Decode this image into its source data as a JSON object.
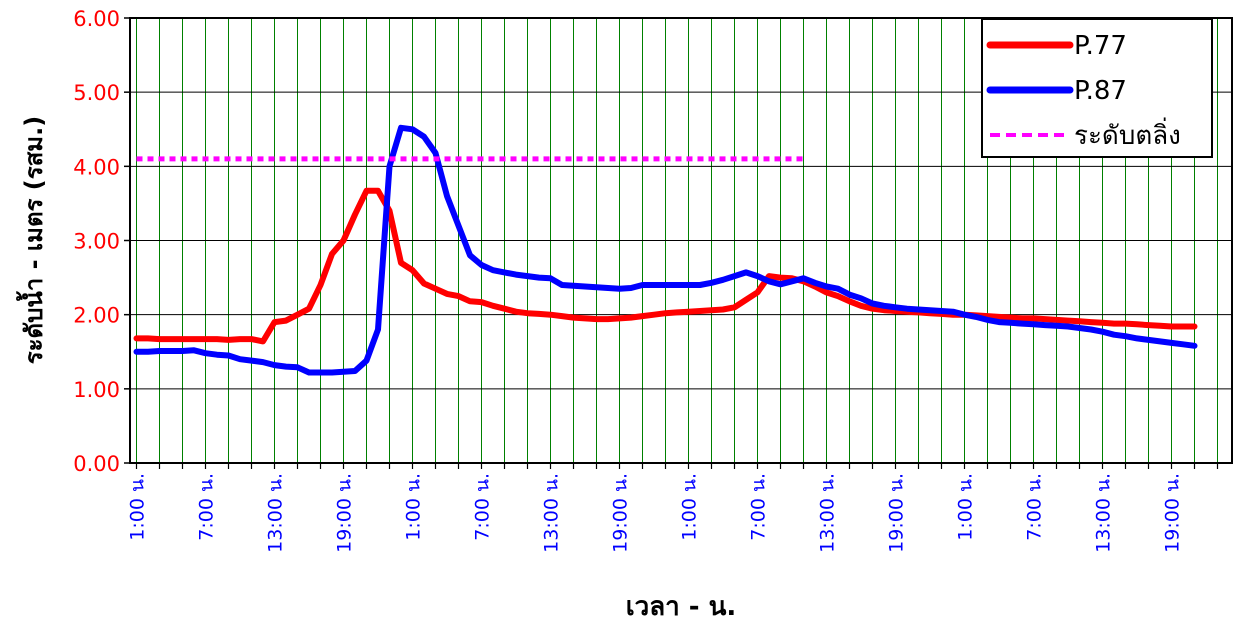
{
  "chart_data": {
    "type": "line",
    "xlabel": "เวลา - น.",
    "ylabel": "ระดับน้ำ - เมตร (รสม.)",
    "ylim": [
      0,
      6
    ],
    "y_ticks": [
      "0.00",
      "1.00",
      "2.00",
      "3.00",
      "4.00",
      "5.00",
      "6.00"
    ],
    "x_range_hours": [
      0,
      94
    ],
    "x_tick_labels": [
      "1:00 น.",
      "7:00 น.",
      "13:00 น.",
      "19:00 น.",
      "1:00 น.",
      "7:00 น.",
      "13:00 น.",
      "19:00 น.",
      "1:00 น.",
      "7:00 น.",
      "13:00 น.",
      "19:00 น.",
      "1:00 น.",
      "7:00 น.",
      "13:00 น.",
      "19:00 น."
    ],
    "grid": true,
    "legend_position": "top-right",
    "series": [
      {
        "name": "P.77",
        "color": "#ff0000",
        "style": "solid",
        "points": [
          [
            0,
            1.68
          ],
          [
            1,
            1.68
          ],
          [
            2,
            1.67
          ],
          [
            3,
            1.67
          ],
          [
            4,
            1.67
          ],
          [
            5,
            1.67
          ],
          [
            6,
            1.67
          ],
          [
            7,
            1.67
          ],
          [
            8,
            1.66
          ],
          [
            9,
            1.67
          ],
          [
            10,
            1.67
          ],
          [
            11,
            1.64
          ],
          [
            12,
            1.9
          ],
          [
            13,
            1.92
          ],
          [
            14,
            2.0
          ],
          [
            15,
            2.08
          ],
          [
            16,
            2.4
          ],
          [
            17,
            2.82
          ],
          [
            18,
            3.0
          ],
          [
            19,
            3.35
          ],
          [
            20,
            3.67
          ],
          [
            21,
            3.67
          ],
          [
            22,
            3.4
          ],
          [
            23,
            2.7
          ],
          [
            24,
            2.6
          ],
          [
            25,
            2.42
          ],
          [
            26,
            2.35
          ],
          [
            27,
            2.28
          ],
          [
            28,
            2.25
          ],
          [
            29,
            2.18
          ],
          [
            30,
            2.17
          ],
          [
            31,
            2.12
          ],
          [
            32,
            2.08
          ],
          [
            33,
            2.04
          ],
          [
            34,
            2.02
          ],
          [
            35,
            2.01
          ],
          [
            36,
            2.0
          ],
          [
            37,
            1.98
          ],
          [
            38,
            1.96
          ],
          [
            39,
            1.95
          ],
          [
            40,
            1.94
          ],
          [
            41,
            1.94
          ],
          [
            42,
            1.95
          ],
          [
            43,
            1.96
          ],
          [
            44,
            1.98
          ],
          [
            45,
            2.0
          ],
          [
            46,
            2.02
          ],
          [
            47,
            2.03
          ],
          [
            48,
            2.04
          ],
          [
            49,
            2.05
          ],
          [
            50,
            2.06
          ],
          [
            51,
            2.07
          ],
          [
            52,
            2.1
          ],
          [
            53,
            2.2
          ],
          [
            54,
            2.3
          ],
          [
            55,
            2.52
          ],
          [
            56,
            2.5
          ],
          [
            57,
            2.49
          ],
          [
            58,
            2.45
          ],
          [
            59,
            2.38
          ],
          [
            60,
            2.3
          ],
          [
            61,
            2.25
          ],
          [
            62,
            2.18
          ],
          [
            63,
            2.12
          ],
          [
            64,
            2.08
          ],
          [
            65,
            2.06
          ],
          [
            66,
            2.05
          ],
          [
            67,
            2.04
          ],
          [
            68,
            2.03
          ],
          [
            69,
            2.02
          ],
          [
            70,
            2.01
          ],
          [
            71,
            2.0
          ],
          [
            72,
            2.0
          ],
          [
            73,
            1.99
          ],
          [
            74,
            1.98
          ],
          [
            75,
            1.97
          ],
          [
            76,
            1.96
          ],
          [
            77,
            1.95
          ],
          [
            78,
            1.95
          ],
          [
            79,
            1.94
          ],
          [
            80,
            1.93
          ],
          [
            81,
            1.92
          ],
          [
            82,
            1.91
          ],
          [
            83,
            1.9
          ],
          [
            84,
            1.89
          ],
          [
            85,
            1.88
          ],
          [
            86,
            1.88
          ],
          [
            87,
            1.87
          ],
          [
            88,
            1.86
          ],
          [
            89,
            1.85
          ],
          [
            90,
            1.84
          ],
          [
            91,
            1.84
          ],
          [
            92,
            1.84
          ]
        ]
      },
      {
        "name": "P.87",
        "color": "#0000ff",
        "style": "solid",
        "points": [
          [
            0,
            1.5
          ],
          [
            1,
            1.5
          ],
          [
            2,
            1.51
          ],
          [
            3,
            1.51
          ],
          [
            4,
            1.51
          ],
          [
            5,
            1.52
          ],
          [
            6,
            1.48
          ],
          [
            7,
            1.46
          ],
          [
            8,
            1.45
          ],
          [
            9,
            1.4
          ],
          [
            10,
            1.38
          ],
          [
            11,
            1.36
          ],
          [
            12,
            1.32
          ],
          [
            13,
            1.3
          ],
          [
            14,
            1.29
          ],
          [
            15,
            1.22
          ],
          [
            16,
            1.22
          ],
          [
            17,
            1.22
          ],
          [
            18,
            1.23
          ],
          [
            19,
            1.24
          ],
          [
            20,
            1.38
          ],
          [
            21,
            1.8
          ],
          [
            22,
            4.0
          ],
          [
            23,
            4.52
          ],
          [
            24,
            4.5
          ],
          [
            25,
            4.4
          ],
          [
            26,
            4.18
          ],
          [
            27,
            3.6
          ],
          [
            28,
            3.2
          ],
          [
            29,
            2.8
          ],
          [
            30,
            2.67
          ],
          [
            31,
            2.6
          ],
          [
            32,
            2.57
          ],
          [
            33,
            2.54
          ],
          [
            34,
            2.52
          ],
          [
            35,
            2.5
          ],
          [
            36,
            2.49
          ],
          [
            37,
            2.4
          ],
          [
            38,
            2.39
          ],
          [
            39,
            2.38
          ],
          [
            40,
            2.37
          ],
          [
            41,
            2.36
          ],
          [
            42,
            2.35
          ],
          [
            43,
            2.36
          ],
          [
            44,
            2.4
          ],
          [
            45,
            2.4
          ],
          [
            46,
            2.4
          ],
          [
            47,
            2.4
          ],
          [
            48,
            2.4
          ],
          [
            49,
            2.4
          ],
          [
            50,
            2.43
          ],
          [
            51,
            2.47
          ],
          [
            52,
            2.52
          ],
          [
            53,
            2.57
          ],
          [
            54,
            2.52
          ],
          [
            55,
            2.45
          ],
          [
            56,
            2.41
          ],
          [
            57,
            2.45
          ],
          [
            58,
            2.49
          ],
          [
            59,
            2.43
          ],
          [
            60,
            2.38
          ],
          [
            61,
            2.35
          ],
          [
            62,
            2.27
          ],
          [
            63,
            2.22
          ],
          [
            64,
            2.15
          ],
          [
            65,
            2.12
          ],
          [
            66,
            2.1
          ],
          [
            67,
            2.08
          ],
          [
            68,
            2.07
          ],
          [
            69,
            2.06
          ],
          [
            70,
            2.05
          ],
          [
            71,
            2.04
          ],
          [
            72,
            2.0
          ],
          [
            73,
            1.97
          ],
          [
            74,
            1.93
          ],
          [
            75,
            1.9
          ],
          [
            76,
            1.89
          ],
          [
            77,
            1.88
          ],
          [
            78,
            1.87
          ],
          [
            79,
            1.86
          ],
          [
            80,
            1.85
          ],
          [
            81,
            1.84
          ],
          [
            82,
            1.82
          ],
          [
            83,
            1.8
          ],
          [
            84,
            1.77
          ],
          [
            85,
            1.73
          ],
          [
            86,
            1.71
          ],
          [
            87,
            1.68
          ],
          [
            88,
            1.66
          ],
          [
            89,
            1.64
          ],
          [
            90,
            1.62
          ],
          [
            91,
            1.6
          ],
          [
            92,
            1.58
          ]
        ]
      },
      {
        "name": "ระดับตลิ่ง",
        "color": "#ff00ff",
        "style": "dashed",
        "points": [
          [
            0,
            4.1
          ],
          [
            58,
            4.1
          ]
        ]
      }
    ]
  }
}
